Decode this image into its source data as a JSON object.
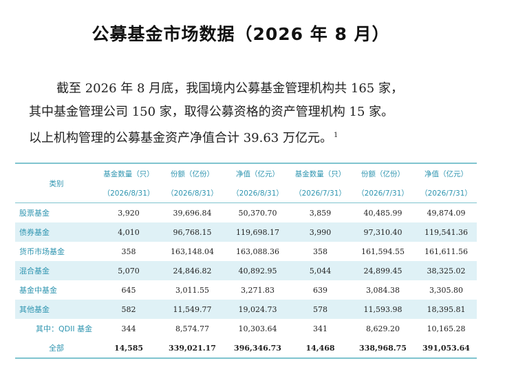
{
  "title": "公募基金市场数据（2026 年 8 月）",
  "paragraph": {
    "line1": "截至 2026 年 8 月底，我国境内公募基金管理机构共 165 家，",
    "line2": "其中基金管理公司 150 家，取得公募资格的资产管理机构 15 家。",
    "line3": "以上机构管理的公募基金资产净值合计 39.63 万亿元。",
    "footnote": "1"
  },
  "table": {
    "category_header": "类别",
    "headers": [
      {
        "name": "基金数量（只）",
        "date": "（2026/8/31）"
      },
      {
        "name": "份额（亿份）",
        "date": "（2026/8/31）"
      },
      {
        "name": "净值（亿元）",
        "date": "（2026/8/31）"
      },
      {
        "name": "基金数量（只）",
        "date": "（2026/7/31）"
      },
      {
        "name": "份额（亿份）",
        "date": "（2026/7/31）"
      },
      {
        "name": "净值（亿元）",
        "date": "（2026/7/31）"
      }
    ],
    "rows": [
      {
        "category": "股票基金",
        "values": [
          "3,920",
          "39,696.84",
          "50,370.70",
          "3,859",
          "40,485.99",
          "49,874.09"
        ]
      },
      {
        "category": "债券基金",
        "values": [
          "4,010",
          "96,768.15",
          "119,698.17",
          "3,990",
          "97,310.40",
          "119,541.36"
        ]
      },
      {
        "category": "货币市场基金",
        "values": [
          "358",
          "163,148.04",
          "163,088.36",
          "358",
          "161,594.55",
          "161,611.56"
        ]
      },
      {
        "category": "混合基金",
        "values": [
          "5,070",
          "24,846.82",
          "40,892.95",
          "5,044",
          "24,899.45",
          "38,325.02"
        ]
      },
      {
        "category": "基金中基金",
        "values": [
          "645",
          "3,011.55",
          "3,271.83",
          "639",
          "3,084.38",
          "3,305.80"
        ]
      },
      {
        "category": "其他基金",
        "values": [
          "582",
          "11,549.77",
          "19,024.73",
          "578",
          "11,593.98",
          "18,395.81"
        ]
      },
      {
        "category": "其中：QDII 基金",
        "values": [
          "344",
          "8,574.77",
          "10,303.64",
          "341",
          "8,629.20",
          "10,165.28"
        ]
      },
      {
        "category": "全部",
        "values": [
          "14,585",
          "339,021.17",
          "396,346.73",
          "14,468",
          "338,968.75",
          "391,053.64"
        ]
      }
    ]
  },
  "colors": {
    "accent": "#2f95b0",
    "row_shade": "#dff1f6",
    "rule": "#7fc4cf"
  }
}
